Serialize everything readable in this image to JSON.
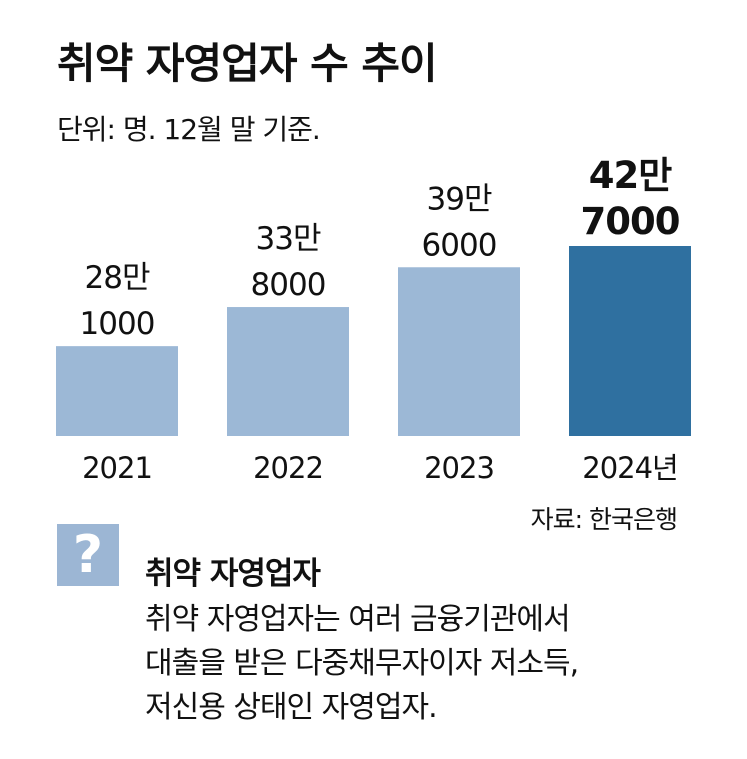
{
  "chart_data": {
    "type": "bar",
    "title": "취약 자영업자 수 추이",
    "subtitle": "단위: 명. 12월 말 기준.",
    "categories": [
      "2021",
      "2022",
      "2023",
      "2024년"
    ],
    "values": [
      281000,
      338000,
      396000,
      427000
    ],
    "value_labels": [
      [
        "28만",
        "1000"
      ],
      [
        "33만",
        "8000"
      ],
      [
        "39만",
        "6000"
      ],
      [
        "42만",
        "7000"
      ]
    ],
    "highlight_index": 3,
    "colors": {
      "bar": "#9cb8d6",
      "highlight": "#2f70a0"
    },
    "ylim": [
      0,
      427000
    ]
  },
  "source": "자료: 한국은행",
  "definition": {
    "icon": "question-icon",
    "icon_glyph": "?",
    "term": "취약 자영업자",
    "lines": [
      "취약 자영업자는 여러 금융기관에서",
      "대출을 받은 다중채무자이자 저소득,",
      "저신용 상태인 자영업자."
    ]
  }
}
